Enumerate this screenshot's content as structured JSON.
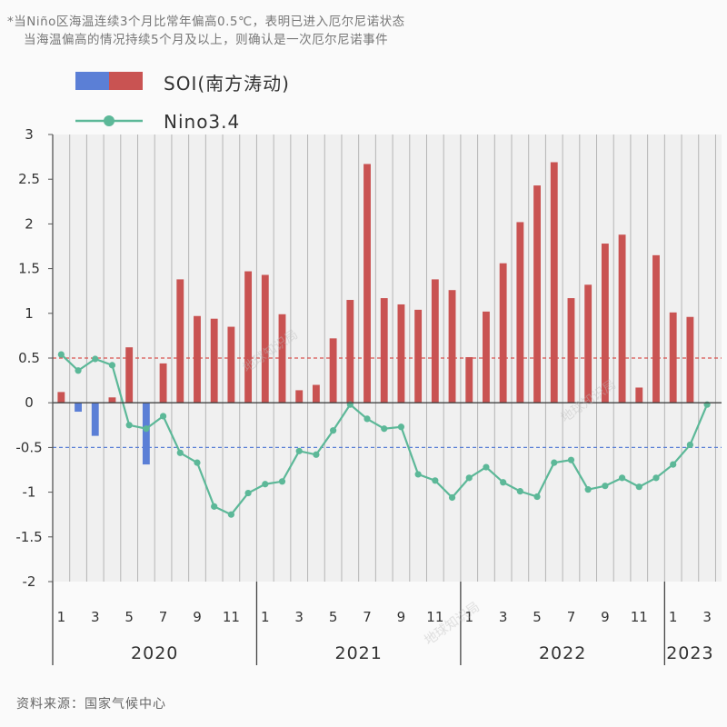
{
  "notes": {
    "line1": "*当Niño区海温连续3个月比常年偏高0.5℃，表明已进入厄尔尼诺状态",
    "line2": "当海温偏高的情况持续5个月及以上，则确认是一次厄尔尼诺事件"
  },
  "source": "资料来源：国家气候中心",
  "watermark": "地球知识局",
  "colors": {
    "positive_bar": "#c95352",
    "negative_bar": "#5b7fd6",
    "line": "#5cb898",
    "upper_threshold": "#d9534f",
    "lower_threshold": "#5b7fd6",
    "plot_bg": "#f0f0f0"
  },
  "chart_data": {
    "type": "bar",
    "ylim": [
      -2,
      3
    ],
    "yticks": [
      "3",
      "2.5",
      "2",
      "1.5",
      "1",
      "0.5",
      "0",
      "-0.5",
      "-1",
      "-1.5",
      "-2"
    ],
    "thresholds": [
      0.5,
      -0.5
    ],
    "month_labels": [
      "1",
      "3",
      "5",
      "7",
      "9",
      "11",
      "1",
      "3",
      "5",
      "7",
      "9",
      "11",
      "1",
      "3",
      "5",
      "7",
      "9",
      "11",
      "1",
      "3"
    ],
    "years": [
      "2020",
      "2021",
      "2022",
      "2023"
    ],
    "legend": [
      {
        "name": "SOI(南方涛动)",
        "kind": "bar"
      },
      {
        "name": "Nino3.4",
        "kind": "line"
      }
    ],
    "x": [
      "2020-01",
      "2020-02",
      "2020-03",
      "2020-04",
      "2020-05",
      "2020-06",
      "2020-07",
      "2020-08",
      "2020-09",
      "2020-10",
      "2020-11",
      "2020-12",
      "2021-01",
      "2021-02",
      "2021-03",
      "2021-04",
      "2021-05",
      "2021-06",
      "2021-07",
      "2021-08",
      "2021-09",
      "2021-10",
      "2021-11",
      "2021-12",
      "2022-01",
      "2022-02",
      "2022-03",
      "2022-04",
      "2022-05",
      "2022-06",
      "2022-07",
      "2022-08",
      "2022-09",
      "2022-10",
      "2022-11",
      "2022-12",
      "2023-01",
      "2023-02",
      "2023-03"
    ],
    "series": [
      {
        "name": "SOI(南方涛动)",
        "values": [
          0.12,
          -0.1,
          -0.37,
          0.06,
          0.62,
          -0.69,
          0.44,
          1.38,
          0.97,
          0.94,
          0.85,
          1.47,
          1.43,
          0.99,
          0.14,
          0.2,
          0.72,
          1.15,
          2.67,
          1.17,
          1.1,
          1.04,
          1.38,
          1.26,
          0.51,
          1.02,
          1.56,
          2.02,
          2.43,
          2.69,
          1.17,
          1.32,
          1.78,
          1.88,
          0.17,
          1.65,
          1.01,
          0.96,
          null
        ]
      },
      {
        "name": "Nino3.4",
        "values": [
          0.54,
          0.36,
          0.49,
          0.42,
          -0.25,
          -0.29,
          -0.15,
          -0.56,
          -0.67,
          -1.16,
          -1.25,
          -1.01,
          -0.91,
          -0.88,
          -0.54,
          -0.58,
          -0.31,
          -0.02,
          -0.18,
          -0.29,
          -0.27,
          -0.8,
          -0.87,
          -1.06,
          -0.84,
          -0.72,
          -0.89,
          -0.99,
          -1.05,
          -0.67,
          -0.64,
          -0.97,
          -0.93,
          -0.84,
          -0.94,
          -0.84,
          -0.69,
          -0.47,
          -0.02
        ]
      }
    ]
  }
}
